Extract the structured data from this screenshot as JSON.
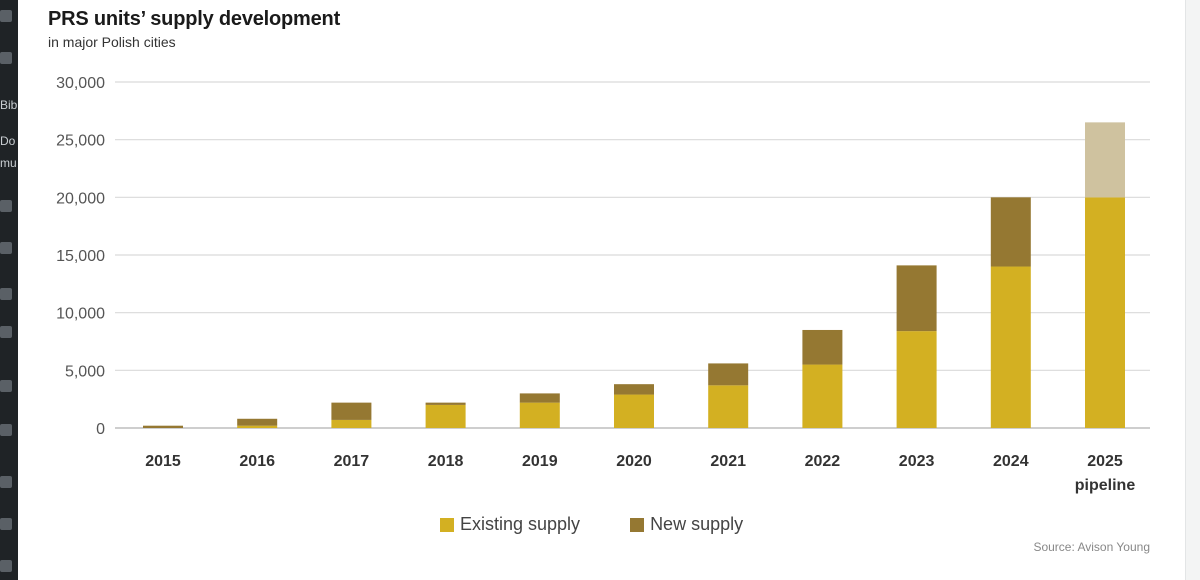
{
  "chart_data": {
    "type": "bar",
    "stacked": true,
    "title": "PRS units’ supply development",
    "subtitle": "in major Polish cities",
    "categories": [
      "2015",
      "2016",
      "2017",
      "2018",
      "2019",
      "2020",
      "2021",
      "2022",
      "2023",
      "2024",
      "2025\npipeline"
    ],
    "series": [
      {
        "name": "Existing supply",
        "color": "#d3b022",
        "values": [
          0,
          200,
          700,
          2000,
          2200,
          2900,
          3700,
          5500,
          8400,
          14000,
          20000
        ]
      },
      {
        "name": "New supply",
        "color": "#957832",
        "values": [
          200,
          600,
          1500,
          200,
          800,
          900,
          1900,
          3000,
          5700,
          6000,
          6500
        ],
        "pipeline_color": "#cfc29f"
      }
    ],
    "ylim": [
      0,
      30000
    ],
    "yticks": [
      "0",
      "5,000",
      "10,000",
      "15,000",
      "20,000",
      "25,000",
      "30,000"
    ],
    "grid": true,
    "legend_position": "bottom"
  },
  "source_text": "Source: Avison Young",
  "sidebar_fragments": [
    "Bib",
    "Do",
    "mu"
  ]
}
